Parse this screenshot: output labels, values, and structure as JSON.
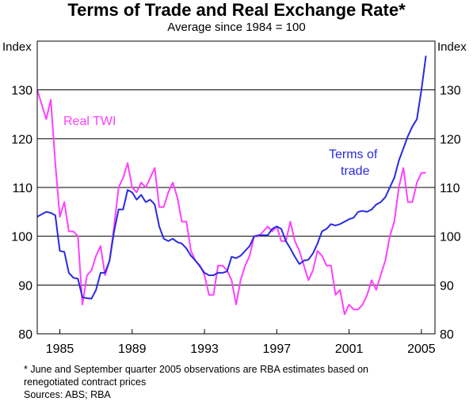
{
  "chart_data": {
    "type": "line",
    "title": "Terms of Trade and Real Exchange Rate*",
    "subtitle": "Average since 1984 = 100",
    "ylabel_left": "Index",
    "ylabel_right": "Index",
    "ylim": [
      80,
      140
    ],
    "yticks": [
      80,
      90,
      100,
      110,
      120,
      130
    ],
    "xlim": [
      1983.75,
      2005.75
    ],
    "xticks": [
      1985,
      1989,
      1993,
      1997,
      2001,
      2005
    ],
    "grid": "horizontal",
    "series": [
      {
        "name": "Real TWI",
        "color": "#ff40ff",
        "x": [
          1983.75,
          1984.0,
          1984.25,
          1984.5,
          1984.75,
          1985.0,
          1985.25,
          1985.5,
          1985.75,
          1986.0,
          1986.25,
          1986.5,
          1986.75,
          1987.0,
          1987.25,
          1987.5,
          1987.75,
          1988.0,
          1988.25,
          1988.5,
          1988.75,
          1989.0,
          1989.25,
          1989.5,
          1989.75,
          1990.0,
          1990.25,
          1990.5,
          1990.75,
          1991.0,
          1991.25,
          1991.5,
          1991.75,
          1992.0,
          1992.25,
          1992.5,
          1992.75,
          1993.0,
          1993.25,
          1993.5,
          1993.75,
          1994.0,
          1994.25,
          1994.5,
          1994.75,
          1995.0,
          1995.25,
          1995.5,
          1995.75,
          1996.0,
          1996.25,
          1996.5,
          1996.75,
          1997.0,
          1997.25,
          1997.5,
          1997.75,
          1998.0,
          1998.25,
          1998.5,
          1998.75,
          1999.0,
          1999.25,
          1999.5,
          1999.75,
          2000.0,
          2000.25,
          2000.5,
          2000.75,
          2001.0,
          2001.25,
          2001.5,
          2001.75,
          2002.0,
          2002.25,
          2002.5,
          2002.75,
          2003.0,
          2003.25,
          2003.5,
          2003.75,
          2004.0,
          2004.25,
          2004.5,
          2004.75,
          2005.0,
          2005.25
        ],
        "values": [
          130,
          127,
          124,
          128,
          115,
          104,
          107,
          101,
          101,
          100,
          86,
          92,
          93,
          96,
          98,
          92,
          95,
          102,
          110,
          112,
          115,
          110,
          109,
          111,
          110,
          112,
          114,
          106,
          106,
          109,
          111,
          108,
          103,
          103,
          97,
          95,
          94,
          92,
          88,
          88,
          94,
          94,
          93,
          91,
          86,
          91,
          94,
          96,
          100,
          100,
          101,
          102,
          101,
          102,
          99,
          99,
          103,
          99,
          97,
          94,
          91,
          93,
          97,
          96,
          94,
          94,
          88,
          89,
          84,
          86,
          85,
          85,
          86,
          88,
          91,
          89,
          92,
          95,
          100,
          103,
          110,
          114,
          107,
          107,
          111,
          113,
          113
        ]
      },
      {
        "name": "Terms of trade",
        "color": "#2a2ae0",
        "x": [
          1983.75,
          1984.0,
          1984.25,
          1984.5,
          1984.75,
          1985.0,
          1985.25,
          1985.5,
          1985.75,
          1986.0,
          1986.25,
          1986.5,
          1986.75,
          1987.0,
          1987.25,
          1987.5,
          1987.75,
          1988.0,
          1988.25,
          1988.5,
          1988.75,
          1989.0,
          1989.25,
          1989.5,
          1989.75,
          1990.0,
          1990.25,
          1990.5,
          1990.75,
          1991.0,
          1991.25,
          1991.5,
          1991.75,
          1992.0,
          1992.25,
          1992.5,
          1992.75,
          1993.0,
          1993.25,
          1993.5,
          1993.75,
          1994.0,
          1994.25,
          1994.5,
          1994.75,
          1995.0,
          1995.25,
          1995.5,
          1995.75,
          1996.0,
          1996.25,
          1996.5,
          1996.75,
          1997.0,
          1997.25,
          1997.5,
          1997.75,
          1998.0,
          1998.25,
          1998.5,
          1998.75,
          1999.0,
          1999.25,
          1999.5,
          1999.75,
          2000.0,
          2000.25,
          2000.5,
          2000.75,
          2001.0,
          2001.25,
          2001.5,
          2001.75,
          2002.0,
          2002.25,
          2002.5,
          2002.75,
          2003.0,
          2003.25,
          2003.5,
          2003.75,
          2004.0,
          2004.25,
          2004.5,
          2004.75,
          2005.0,
          2005.25
        ],
        "values": [
          104,
          104.5,
          105,
          104.8,
          104.3,
          97,
          96.8,
          92.5,
          91.5,
          91.3,
          87.5,
          87.3,
          87.2,
          89,
          92.5,
          92.5,
          95,
          101,
          105.5,
          105.5,
          109.5,
          109,
          107.5,
          108.5,
          107,
          107.5,
          106.5,
          102,
          99.5,
          99,
          99.5,
          98.8,
          98.5,
          97.5,
          96,
          95,
          93.8,
          92.5,
          92,
          92,
          92.5,
          92.5,
          92.8,
          95.8,
          95.5,
          96,
          97,
          98,
          100,
          100.2,
          100.2,
          100.2,
          101.5,
          102,
          101.5,
          99,
          97.5,
          95.8,
          94.3,
          95,
          95.2,
          96.5,
          98.5,
          101,
          101.5,
          102.5,
          102.2,
          102.5,
          103,
          103.5,
          103.8,
          105,
          105.2,
          105,
          105.5,
          106.5,
          107,
          108,
          110,
          112,
          115.5,
          118,
          120.5,
          122.5,
          124,
          130,
          137
        ]
      }
    ],
    "annotations": [
      "Real TWI",
      "Terms of",
      "trade"
    ]
  },
  "footnotes": {
    "note_line1": "*   June and September quarter 2005 observations are RBA estimates based on",
    "note_line2": "renegotiated contract prices",
    "sources": "Sources: ABS; RBA"
  }
}
